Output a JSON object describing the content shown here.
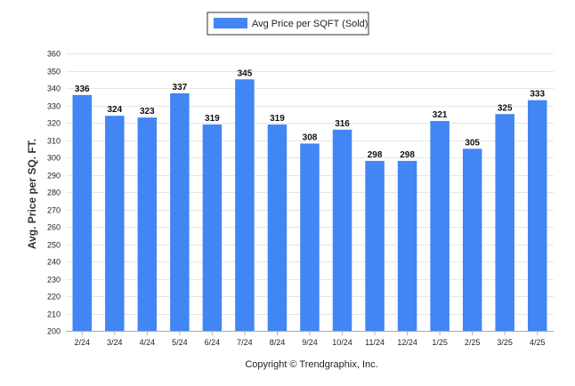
{
  "chart_data": {
    "type": "bar",
    "categories": [
      "2/24",
      "3/24",
      "4/24",
      "5/24",
      "6/24",
      "7/24",
      "8/24",
      "9/24",
      "10/24",
      "11/24",
      "12/24",
      "1/25",
      "2/25",
      "3/25",
      "4/25"
    ],
    "series": [
      {
        "name": "Avg Price per SQFT (Sold)",
        "values": [
          336,
          324,
          323,
          337,
          319,
          345,
          319,
          308,
          316,
          298,
          298,
          321,
          305,
          325,
          333
        ]
      }
    ],
    "xlabel": "",
    "ylabel": "Avg. Price per SQ. FT.",
    "ylim": [
      200,
      360
    ],
    "yticks": [
      200,
      210,
      220,
      230,
      240,
      250,
      260,
      270,
      280,
      290,
      300,
      310,
      320,
      330,
      340,
      350,
      360
    ],
    "grid": true,
    "legend": "top-center",
    "data_labels": true
  },
  "colors": {
    "bar": "#4285f4",
    "grid": "#e6e6e6"
  },
  "footer": {
    "copyright": "Copyright © Trendgraphix, Inc."
  }
}
